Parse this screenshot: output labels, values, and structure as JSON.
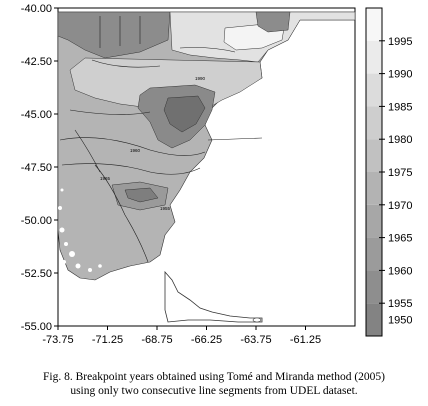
{
  "chart_data": {
    "type": "heatmap",
    "title": "",
    "xlabel": "",
    "ylabel": "",
    "xlim": [
      -73.75,
      -58.75
    ],
    "ylim": [
      -55.0,
      -40.0
    ],
    "x_ticks": [
      "-73.75",
      "-71.25",
      "-68.75",
      "-66.25",
      "-63.75",
      "-61.25"
    ],
    "x_tick_values": [
      -73.75,
      -71.25,
      -68.75,
      -66.25,
      -63.75,
      -61.25
    ],
    "y_ticks": [
      "-40.00",
      "-42.50",
      "-45.00",
      "-47.50",
      "-50.00",
      "-52.50",
      "-55.00"
    ],
    "y_tick_values": [
      -40.0,
      -42.5,
      -45.0,
      -47.5,
      -50.0,
      -52.5,
      -55.0
    ],
    "colorbar": {
      "labels": [
        "1995",
        "1990",
        "1985",
        "1980",
        "1975",
        "1970",
        "1965",
        "1960",
        "1955",
        "1950"
      ],
      "colors": [
        "#f7f7f7",
        "#ebebeb",
        "#dcdcdc",
        "#cecece",
        "#c1c1c1",
        "#b3b3b3",
        "#a7a7a7",
        "#9b9b9b",
        "#8e8e8e",
        "#838383"
      ]
    },
    "contour_labels": [
      "1990",
      "1965",
      "1960",
      "1955"
    ],
    "grid": false
  },
  "caption": {
    "line1": "Fig. 8.  Breakpoint years obtained using Tomé and Miranda method (2005)",
    "line2": "using only two consecutive line segments from UDEL dataset."
  }
}
